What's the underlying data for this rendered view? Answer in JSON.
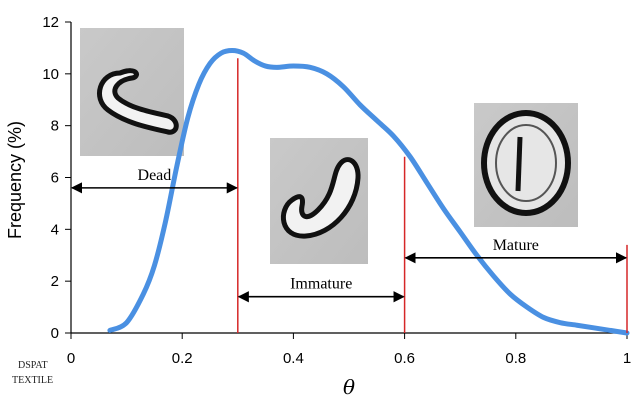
{
  "chart_data": {
    "type": "area",
    "xlabel": "θ",
    "ylabel": "Frequency (%)",
    "xlim": [
      0,
      1
    ],
    "ylim": [
      0,
      12
    ],
    "x_ticks": [
      "0",
      "0.2",
      "0.4",
      "0.6",
      "0.8",
      "1"
    ],
    "y_ticks": [
      "0",
      "2",
      "4",
      "6",
      "8",
      "10",
      "12"
    ],
    "grid": false,
    "series": [
      {
        "color": "#4a90e2",
        "x": [
          0.07,
          0.1,
          0.13,
          0.15,
          0.17,
          0.19,
          0.21,
          0.23,
          0.25,
          0.27,
          0.29,
          0.31,
          0.33,
          0.35,
          0.37,
          0.4,
          0.43,
          0.46,
          0.49,
          0.52,
          0.55,
          0.58,
          0.61,
          0.64,
          0.67,
          0.7,
          0.73,
          0.76,
          0.79,
          0.82,
          0.85,
          0.88,
          0.91,
          0.94,
          0.97,
          1.0
        ],
        "y": [
          0.1,
          0.4,
          1.5,
          2.6,
          4.3,
          6.4,
          8.3,
          9.6,
          10.4,
          10.8,
          10.9,
          10.8,
          10.5,
          10.3,
          10.25,
          10.3,
          10.25,
          10.0,
          9.5,
          8.8,
          8.2,
          7.6,
          6.8,
          5.8,
          4.8,
          3.9,
          3.0,
          2.2,
          1.5,
          1.0,
          0.6,
          0.4,
          0.3,
          0.2,
          0.1,
          0.0
        ]
      }
    ],
    "thresholds": {
      "color": "#d62728",
      "x": [
        0.3,
        0.6,
        1.0
      ]
    },
    "regions": [
      {
        "label": "Dead",
        "x_start": 0.0,
        "x_end": 0.3,
        "y": 5.6
      },
      {
        "label": "Immature",
        "x_start": 0.3,
        "x_end": 0.6,
        "y": 1.4
      },
      {
        "label": "Mature",
        "x_start": 0.6,
        "x_end": 1.0,
        "y": 2.9
      }
    ]
  },
  "watermark": [
    "DSPAT",
    "TEXTILE"
  ]
}
